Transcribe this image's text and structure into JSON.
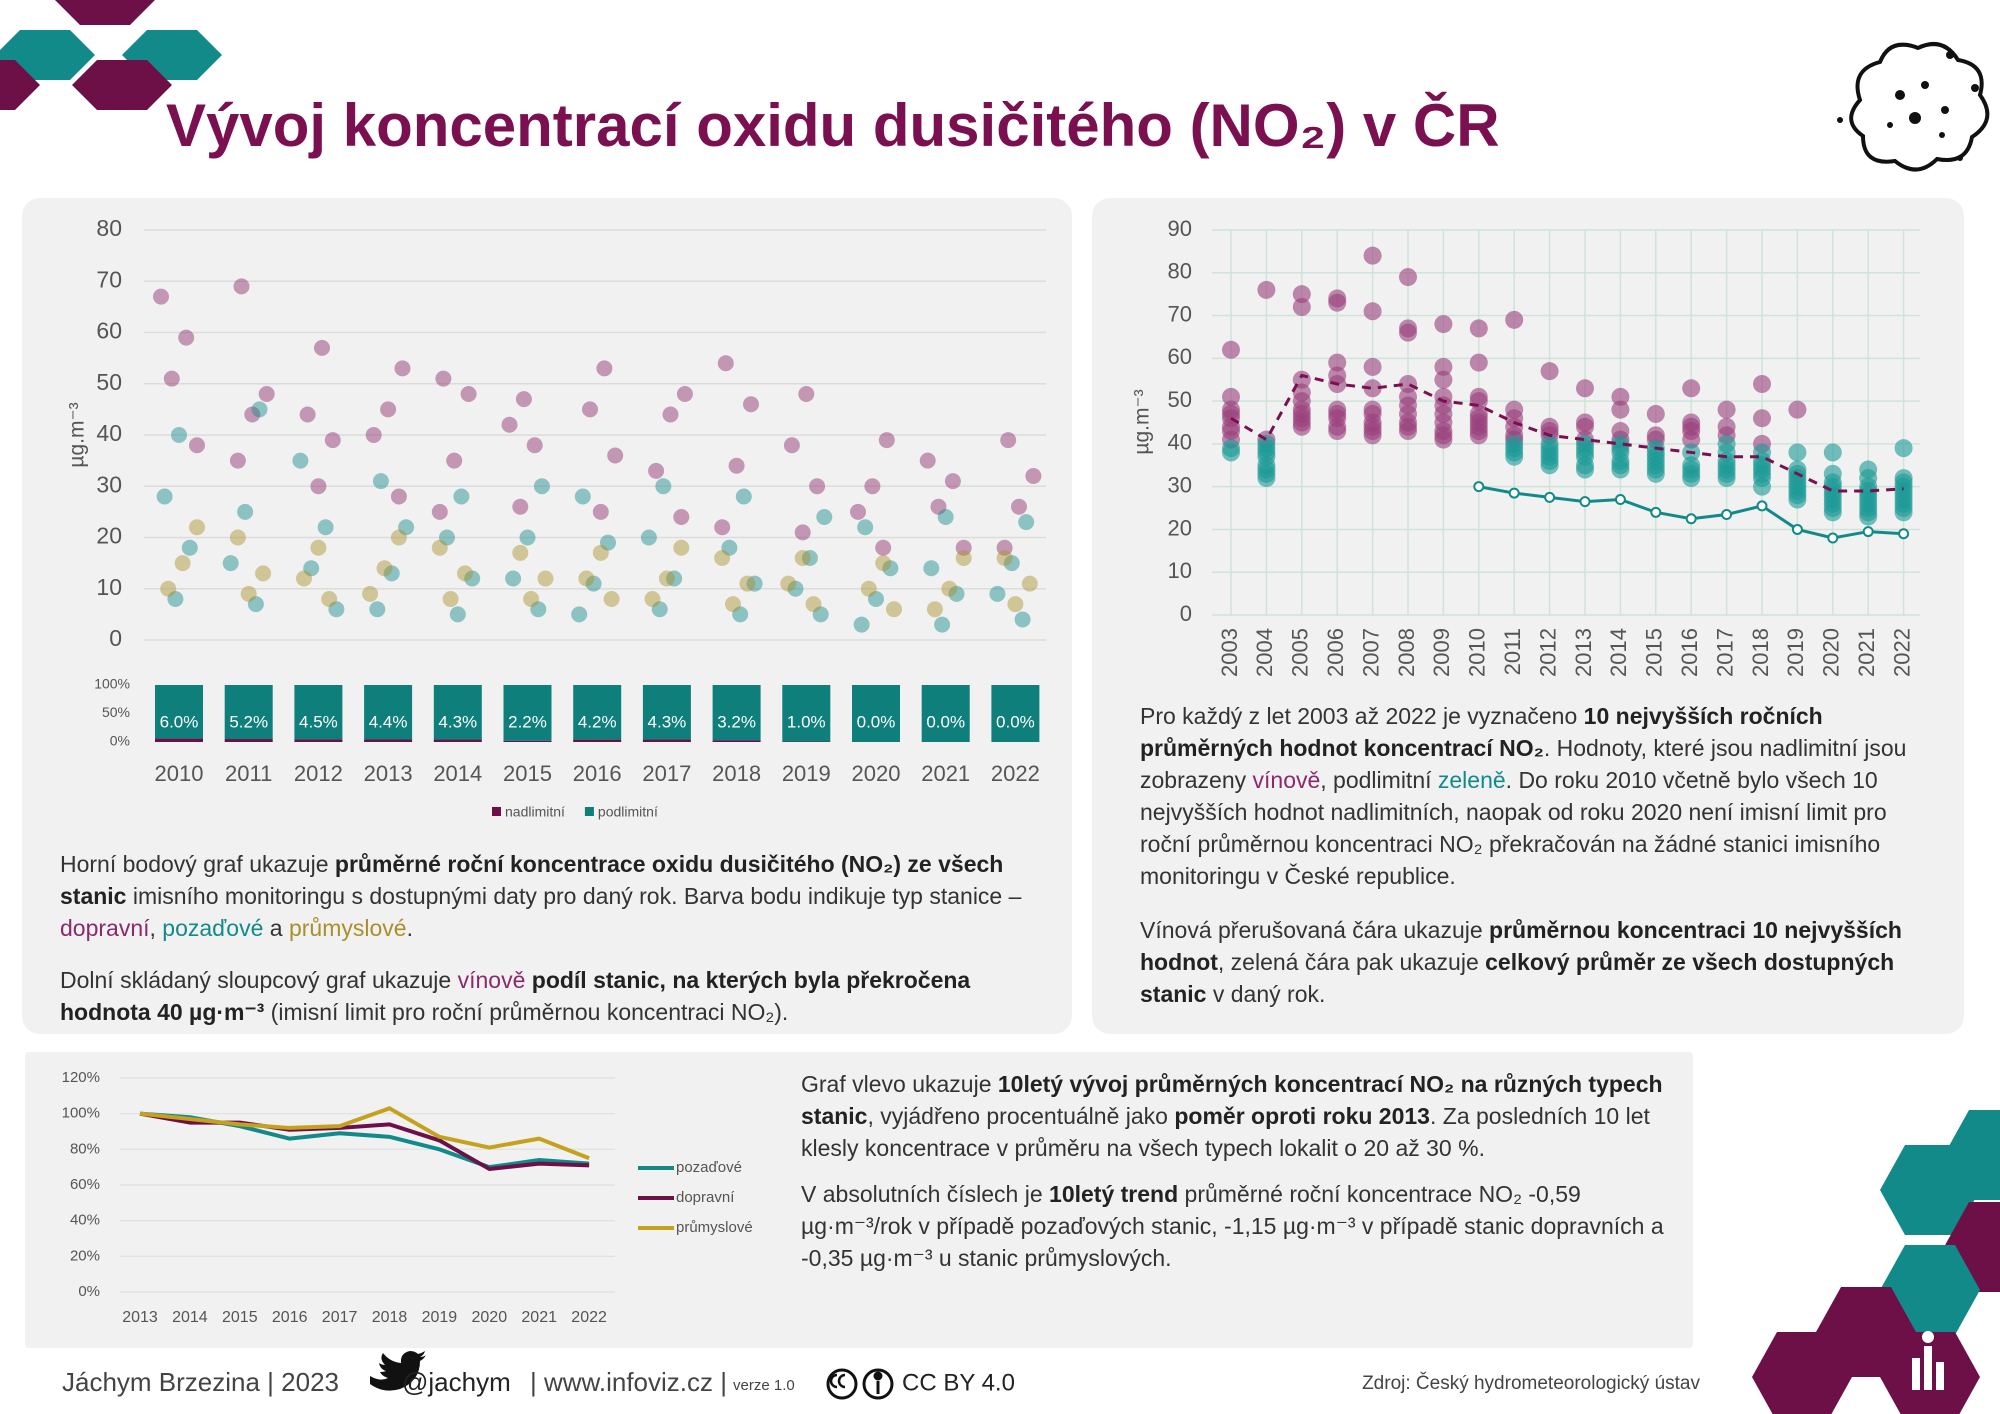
{
  "header": {
    "title": "Vývoj koncentrací oxidu dusičitého (NO₂) v ČR"
  },
  "chart_data": [
    {
      "type": "strip",
      "y_label": "µg.m⁻³",
      "categories": [
        "2010",
        "2011",
        "2012",
        "2013",
        "2014",
        "2015",
        "2016",
        "2017",
        "2018",
        "2019",
        "2020",
        "2021",
        "2022"
      ],
      "ylim": [
        0,
        80
      ],
      "yticks": [
        0,
        10,
        20,
        30,
        40,
        50,
        60,
        70,
        80
      ],
      "grid": true,
      "series": [
        {
          "color": "#8b2a6b",
          "values": [
            [
              67,
              59,
              51,
              38
            ],
            [
              69,
              48,
              44,
              35
            ],
            [
              57,
              44,
              39,
              30
            ],
            [
              53,
              45,
              40,
              28
            ],
            [
              51,
              48,
              35,
              25
            ],
            [
              47,
              42,
              38,
              26
            ],
            [
              53,
              45,
              36,
              25
            ],
            [
              48,
              44,
              33,
              24
            ],
            [
              54,
              46,
              34,
              22
            ],
            [
              48,
              38,
              30,
              21
            ],
            [
              39,
              30,
              25,
              18
            ],
            [
              35,
              31,
              26,
              18
            ],
            [
              39,
              32,
              26,
              18
            ]
          ]
        },
        {
          "color": "#138a8a",
          "values": [
            [
              40,
              28,
              18,
              8
            ],
            [
              45,
              25,
              15,
              7
            ],
            [
              35,
              22,
              14,
              6
            ],
            [
              31,
              22,
              13,
              6
            ],
            [
              28,
              20,
              12,
              5
            ],
            [
              30,
              20,
              12,
              6
            ],
            [
              28,
              19,
              11,
              5
            ],
            [
              30,
              20,
              12,
              6
            ],
            [
              28,
              18,
              11,
              5
            ],
            [
              24,
              16,
              10,
              5
            ],
            [
              22,
              14,
              8,
              3
            ],
            [
              24,
              14,
              9,
              3
            ],
            [
              23,
              15,
              9,
              4
            ]
          ]
        },
        {
          "color": "#a8902a",
          "values": [
            [
              22,
              15,
              10
            ],
            [
              20,
              13,
              9
            ],
            [
              18,
              12,
              8
            ],
            [
              20,
              14,
              9
            ],
            [
              18,
              13,
              8
            ],
            [
              17,
              12,
              8
            ],
            [
              17,
              12,
              8
            ],
            [
              18,
              12,
              8
            ],
            [
              16,
              11,
              7
            ],
            [
              16,
              11,
              7
            ],
            [
              15,
              10,
              6
            ],
            [
              16,
              10,
              6
            ],
            [
              16,
              11,
              7
            ]
          ]
        }
      ]
    },
    {
      "type": "stacked_bar",
      "ylim": [
        0,
        100
      ],
      "yticks": [
        {
          "value": 0,
          "label": "0%"
        },
        {
          "value": 50,
          "label": "50%"
        },
        {
          "value": 100,
          "label": "100%"
        }
      ],
      "legend": "bottom",
      "series": [
        {
          "name": "nadlimitní",
          "color": "#6d1048",
          "values": [
            6.0,
            5.2,
            4.5,
            4.4,
            4.3,
            2.2,
            4.2,
            4.3,
            3.2,
            1.0,
            0.0,
            0.0,
            0.0
          ],
          "value_labels": [
            "6.0%",
            "5.2%",
            "4.5%",
            "4.4%",
            "4.3%",
            "2.2%",
            "4.2%",
            "4.3%",
            "3.2%",
            "1.0%",
            "0.0%",
            "0.0%",
            "0.0%"
          ]
        },
        {
          "name": "podlimitní",
          "color": "#0f7f7b",
          "values": [
            94.0,
            94.8,
            95.5,
            95.6,
            95.7,
            97.8,
            95.8,
            95.7,
            96.8,
            99.0,
            100,
            100,
            100
          ]
        }
      ]
    },
    {
      "type": "scatter",
      "y_label": "µg.m⁻³",
      "categories": [
        "2003",
        "2004",
        "2005",
        "2006",
        "2007",
        "2008",
        "2009",
        "2010",
        "2011",
        "2012",
        "2013",
        "2014",
        "2015",
        "2016",
        "2017",
        "2018",
        "2019",
        "2020",
        "2021",
        "2022"
      ],
      "ylim": [
        0,
        90
      ],
      "yticks": [
        0,
        10,
        20,
        30,
        40,
        50,
        60,
        70,
        80,
        90
      ],
      "grid": true,
      "series": [
        {
          "type": "scatter",
          "color": "#9a3f7c",
          "values": [
            [
              62,
              51,
              48,
              47,
              46,
              44,
              43,
              41
            ],
            [
              76,
              41
            ],
            [
              75,
              72,
              55,
              52,
              50,
              48,
              47,
              46,
              45,
              44
            ],
            [
              74,
              73,
              59,
              56,
              54,
              48,
              47,
              46,
              44,
              43
            ],
            [
              84,
              71,
              58,
              53,
              48,
              47,
              45,
              44,
              43,
              42
            ],
            [
              79,
              67,
              66,
              54,
              51,
              49,
              47,
              45,
              44,
              43
            ],
            [
              68,
              58,
              55,
              51,
              49,
              47,
              45,
              43,
              42,
              41
            ],
            [
              67,
              59,
              51,
              50,
              47,
              46,
              45,
              44,
              43,
              42
            ],
            [
              69,
              48,
              46,
              44,
              42,
              41
            ],
            [
              57,
              44,
              43,
              42
            ],
            [
              53,
              45,
              44,
              41
            ],
            [
              51,
              48,
              43,
              41
            ],
            [
              47,
              42,
              41
            ],
            [
              53,
              45,
              44,
              43,
              41
            ],
            [
              48,
              44,
              42
            ],
            [
              54,
              46,
              40
            ],
            [
              48
            ],
            [],
            [],
            []
          ]
        },
        {
          "type": "scatter",
          "color": "#1a9a96",
          "values": [
            [
              39,
              38
            ],
            [
              40,
              39,
              38,
              37,
              35,
              34,
              33,
              32
            ],
            [],
            [],
            [],
            [],
            [],
            [],
            [
              40,
              39,
              38,
              37
            ],
            [
              40,
              39,
              38,
              37,
              36,
              35
            ],
            [
              40,
              39,
              38,
              37,
              35,
              34
            ],
            [
              40,
              39,
              38,
              36,
              35,
              34
            ],
            [
              39,
              38,
              37,
              36,
              35,
              34,
              33
            ],
            [
              38,
              35,
              34,
              33,
              32
            ],
            [
              40,
              38,
              36,
              35,
              34,
              33,
              32
            ],
            [
              38,
              36,
              35,
              34,
              33,
              32,
              30
            ],
            [
              38,
              34,
              33,
              32,
              31,
              30,
              29,
              28,
              27
            ],
            [
              38,
              33,
              31,
              30,
              29,
              28,
              27,
              26,
              25,
              24
            ],
            [
              34,
              32,
              30,
              29,
              28,
              27,
              26,
              25,
              24,
              23
            ],
            [
              39,
              32,
              31,
              30,
              29,
              28,
              27,
              26,
              25,
              24
            ]
          ]
        },
        {
          "type": "line",
          "color": "#7a1050",
          "dashed": true,
          "values": [
            46,
            41,
            56,
            54,
            53,
            54,
            50,
            49,
            45,
            42,
            41,
            40,
            39,
            38,
            37,
            37,
            33,
            29,
            29,
            29.5
          ]
        },
        {
          "type": "line",
          "color": "#138a8a",
          "markers": true,
          "values": [
            null,
            null,
            null,
            null,
            null,
            null,
            null,
            30,
            28.5,
            27.5,
            26.5,
            27,
            24,
            22.5,
            23.5,
            25.5,
            20,
            18,
            19.5,
            19
          ]
        }
      ]
    },
    {
      "type": "line",
      "categories": [
        "2013",
        "2014",
        "2015",
        "2016",
        "2017",
        "2018",
        "2019",
        "2020",
        "2021",
        "2022"
      ],
      "ylim": [
        0,
        120
      ],
      "yticks": [
        {
          "value": 0,
          "label": "0%"
        },
        {
          "value": 20,
          "label": "20%"
        },
        {
          "value": 40,
          "label": "40%"
        },
        {
          "value": 60,
          "label": "60%"
        },
        {
          "value": 80,
          "label": "80%"
        },
        {
          "value": 100,
          "label": "100%"
        },
        {
          "value": 120,
          "label": "120%"
        }
      ],
      "grid": true,
      "legend": "right",
      "series": [
        {
          "name": "pozaďové",
          "color": "#138a8a",
          "values": [
            100,
            98,
            93,
            86,
            89,
            87,
            80,
            70,
            74,
            72
          ]
        },
        {
          "name": "dopravní",
          "color": "#6d1048",
          "values": [
            100,
            95,
            95,
            91,
            92,
            94,
            85,
            69,
            72,
            71
          ]
        },
        {
          "name": "průmyslové",
          "color": "#c4a21e",
          "values": [
            100,
            97,
            94,
            92,
            93,
            103,
            87,
            81,
            86,
            75
          ]
        }
      ]
    }
  ],
  "texts": {
    "left": [
      [
        "Horní bodový graf ukazuje ",
        {
          "text": "průměrné roční koncentrace oxidu dusičitého (NO₂) ze všech stanic",
          "bold": true
        },
        " imisního monitoringu s dostupnými daty pro daný rok. Barva bodu indikuje typ stanice – ",
        {
          "text": "dopravní",
          "color": "#8b2a6b"
        },
        ", ",
        {
          "text": "pozaďové",
          "color": "#138a8a"
        },
        " a ",
        {
          "text": "průmyslové",
          "color": "#a8902a"
        },
        "."
      ],
      [
        "Dolní skládaný sloupcový graf ukazuje ",
        {
          "text": "vínově",
          "color": "#8b2a6b"
        },
        {
          "text": " podíl stanic, na kterých byla překročena hodnota 40 µg·m⁻³",
          "bold": true
        },
        " (imisní limit pro roční průměrnou koncentraci NO₂)."
      ]
    ],
    "right": [
      [
        "Pro každý z let 2003 až 2022 je vyznačeno ",
        {
          "text": "10 nejvyšších ročních průměrných hodnot koncentrací NO₂",
          "bold": true
        },
        ". Hodnoty, které jsou nadlimitní jsou zobrazeny ",
        {
          "text": "vínově",
          "color": "#8b2a6b"
        },
        ", podlimitní ",
        {
          "text": "zeleně",
          "color": "#138a8a"
        },
        ". Do roku 2010 včetně bylo všech 10 nejvyšších hodnot nadlimitních, naopak od roku 2020 není imisní limit pro roční průměrnou koncentraci NO₂ překračován na žádné stanici imisního monitoringu v České republice."
      ],
      [
        "Vínová přerušovaná čára ukazuje ",
        {
          "text": "průměrnou koncentraci 10 nejvyšších hodnot",
          "bold": true
        },
        ", zelená čára pak ukazuje ",
        {
          "text": "celkový průměr ze všech dostupných stanic",
          "bold": true
        },
        " v daný rok."
      ]
    ],
    "bottom": [
      [
        "Graf vlevo ukazuje ",
        {
          "text": "10letý vývoj průměrných koncentrací NO₂ na různých typech stanic",
          "bold": true
        },
        ", vyjádřeno procentuálně jako ",
        {
          "text": "poměr oproti roku 2013",
          "bold": true
        },
        ". Za posledních 10 let klesly koncentrace v průměru na všech typech lokalit o 20 až 30 %."
      ],
      [
        "V absolutních číslech je ",
        {
          "text": "10letý trend",
          "bold": true
        },
        " průměrné roční koncentrace NO₂ -0,59 µg·m⁻³/rok v případě pozaďových stanic, -1,15 µg·m⁻³ v případě stanic dopravních a -0,35 µg·m⁻³ u stanic průmyslových."
      ]
    ]
  },
  "footer": {
    "author": "Jáchym Brzezina | 2023",
    "twitter": "@jachym",
    "web": "| www.infoviz.cz |",
    "version": "verze 1.0",
    "license": "CC BY 4.0",
    "source": "Zdroj: Český hydrometeorologický ústav"
  }
}
